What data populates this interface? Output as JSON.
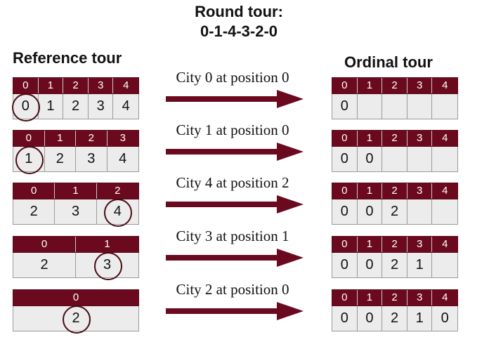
{
  "title": {
    "line1": "Round tour:",
    "line2": "0-1-4-3-2-0"
  },
  "reference_heading": "Reference tour",
  "ordinal_heading": "Ordinal tour",
  "colors": {
    "header": "#6b0a1e",
    "cell": "#ececec",
    "circle": "#4a0b14",
    "arrow": "#6b0a1e"
  },
  "steps": [
    {
      "label": "City 0 at position 0",
      "reference": {
        "positions": [
          "0",
          "1",
          "2",
          "3",
          "4"
        ],
        "cities": [
          "0",
          "1",
          "2",
          "3",
          "4"
        ],
        "circled_index": 0
      },
      "ordinal": {
        "positions": [
          "0",
          "1",
          "2",
          "3",
          "4"
        ],
        "values": [
          "0",
          "",
          "",
          "",
          ""
        ]
      }
    },
    {
      "label": "City 1 at position 0",
      "reference": {
        "positions": [
          "0",
          "1",
          "2",
          "3"
        ],
        "cities": [
          "1",
          "2",
          "3",
          "4"
        ],
        "circled_index": 0
      },
      "ordinal": {
        "positions": [
          "0",
          "1",
          "2",
          "3",
          "4"
        ],
        "values": [
          "0",
          "0",
          "",
          "",
          ""
        ]
      }
    },
    {
      "label": "City 4 at position 2",
      "reference": {
        "positions": [
          "0",
          "1",
          "2"
        ],
        "cities": [
          "2",
          "3",
          "4"
        ],
        "circled_index": 2
      },
      "ordinal": {
        "positions": [
          "0",
          "1",
          "2",
          "3",
          "4"
        ],
        "values": [
          "0",
          "0",
          "2",
          "",
          ""
        ]
      }
    },
    {
      "label": "City 3 at position 1",
      "reference": {
        "positions": [
          "0",
          "1"
        ],
        "cities": [
          "2",
          "3"
        ],
        "circled_index": 1
      },
      "ordinal": {
        "positions": [
          "0",
          "1",
          "2",
          "3",
          "4"
        ],
        "values": [
          "0",
          "0",
          "2",
          "1",
          ""
        ]
      }
    },
    {
      "label": "City 2 at position 0",
      "reference": {
        "positions": [
          "0"
        ],
        "cities": [
          "2"
        ],
        "circled_index": 0
      },
      "ordinal": {
        "positions": [
          "0",
          "1",
          "2",
          "3",
          "4"
        ],
        "values": [
          "0",
          "0",
          "2",
          "1",
          "0"
        ]
      }
    }
  ]
}
